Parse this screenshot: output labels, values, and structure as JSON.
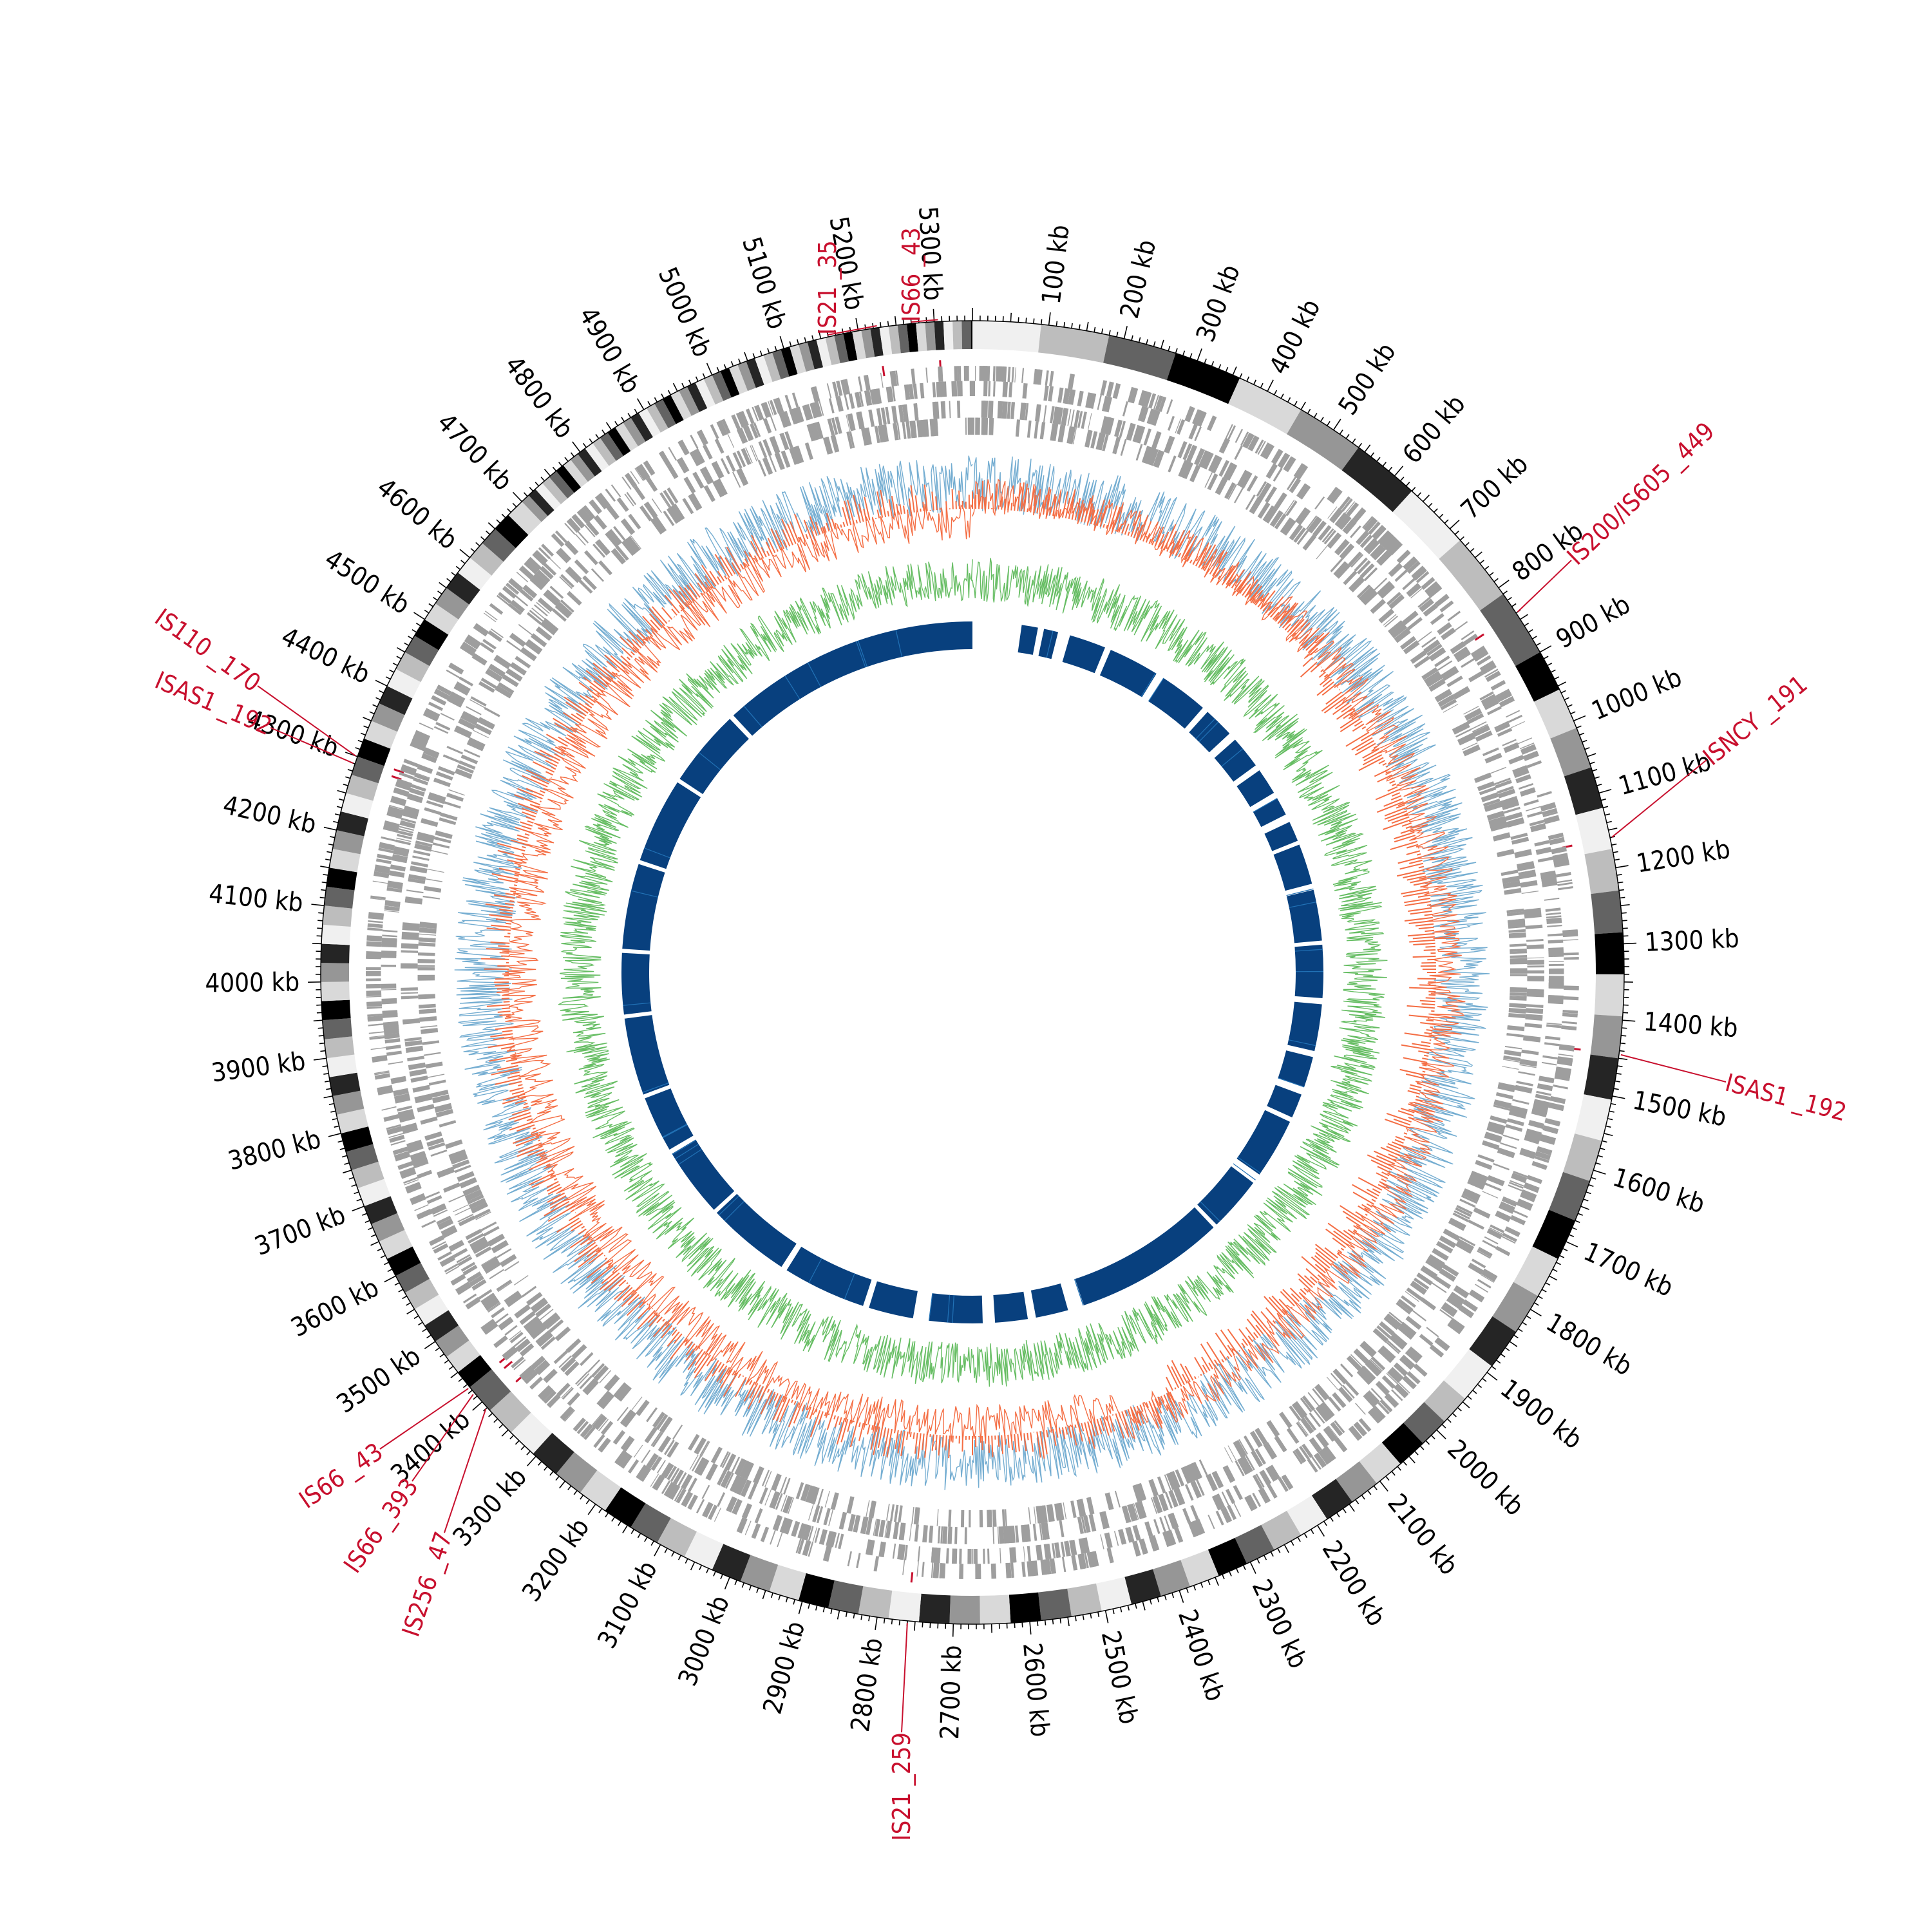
{
  "genome": {
    "size_kb": 5350,
    "tick_step_kb": 100,
    "tick_suffix": " kb",
    "scale_labels": [
      "100 kb",
      "200 kb",
      "300 kb",
      "400 kb",
      "500 kb",
      "600 kb",
      "700 kb",
      "800 kb",
      "900 kb",
      "1000 kb",
      "1100 kb",
      "1200 kb",
      "1300 kb",
      "1400 kb",
      "1500 kb",
      "1600 kb",
      "1700 kb",
      "1800 kb",
      "1900 kb",
      "2000 kb",
      "2100 kb",
      "2200 kb",
      "2300 kb",
      "2400 kb",
      "2500 kb",
      "2600 kb",
      "2700 kb",
      "2800 kb",
      "2900 kb",
      "3000 kb",
      "3100 kb",
      "3200 kb",
      "3300 kb",
      "3400 kb",
      "3500 kb",
      "3600 kb",
      "3700 kb",
      "3800 kb",
      "3900 kb",
      "4000 kb",
      "4100 kb",
      "4200 kb",
      "4300 kb",
      "4400 kb",
      "4500 kb",
      "4600 kb",
      "4700 kb",
      "4800 kb",
      "4900 kb",
      "5000 kb",
      "5100 kb",
      "5200 kb",
      "5300 kb"
    ]
  },
  "insertion_sequences": [
    {
      "name": "IS21 _35",
      "position_kb": 5225
    },
    {
      "name": "IS66 _43",
      "position_kb": 5305
    },
    {
      "name": "IS200/IS605 _449",
      "position_kb": 840
    },
    {
      "name": "ISNCY _191",
      "position_kb": 1160
    },
    {
      "name": "ISAS1 _192",
      "position_kb": 1445
    },
    {
      "name": "IS21 _259",
      "position_kb": 2760
    },
    {
      "name": "IS256 _47",
      "position_kb": 3390
    },
    {
      "name": "IS66 _393",
      "position_kb": 3415
    },
    {
      "name": "IS66 _43",
      "position_kb": 3425
    },
    {
      "name": "ISAS1 _192",
      "position_kb": 4290
    },
    {
      "name": "IS110 _170",
      "position_kb": 4300
    }
  ],
  "tracks": {
    "karyotype": {
      "colors": [
        "#f0f0f0",
        "#bdbdbd",
        "#636363",
        "#000000",
        "#d9d9d9",
        "#969696",
        "#252525"
      ]
    },
    "genes_forward": {
      "color": "#9e9e9e"
    },
    "genes_reverse": {
      "color": "#9e9e9e"
    },
    "gc_content": {
      "color": "#74add1"
    },
    "gc_skew": {
      "color": "#f46d43"
    },
    "coverage": {
      "color": "#66bd63"
    },
    "blocks": {
      "color": "#08407e",
      "light_color": "#2171b5"
    }
  },
  "chart_data": {
    "type": "circular-genome",
    "genome_size_kb": 5350,
    "labels_color": "#c8102e",
    "is_elements": [
      "IS21 _35",
      "IS66 _43",
      "IS200/IS605 _449",
      "ISNCY _191",
      "ISAS1 _192",
      "IS21 _259",
      "IS256 _47",
      "IS66 _393",
      "IS66 _43",
      "ISAS1 _192",
      "IS110 _170"
    ]
  }
}
